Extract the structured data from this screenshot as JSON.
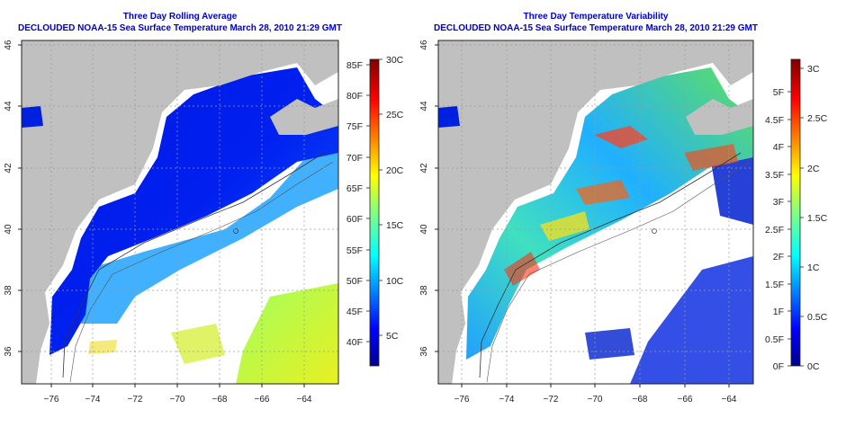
{
  "left_panel": {
    "title": "Three Day Rolling Average",
    "subtitle": "DECLOUDED NOAA-15 Sea Surface Temperature March 28, 2010 21:29 GMT",
    "x_ticks": [
      "−76",
      "−74",
      "−72",
      "−70",
      "−68",
      "−66",
      "−64"
    ],
    "y_ticks": [
      "36",
      "38",
      "40",
      "42",
      "44",
      "46"
    ],
    "colorbar": {
      "left_labels": [
        "40F",
        "45F",
        "50F",
        "55F",
        "60F",
        "65F",
        "70F",
        "75F",
        "80F",
        "85F"
      ],
      "right_labels": [
        "5C",
        "10C",
        "15C",
        "20C",
        "25C",
        "30C"
      ]
    }
  },
  "right_panel": {
    "title": "Three Day Temperature Variability",
    "subtitle": "DECLOUDED NOAA-15 Sea Surface Temperature March 28, 2010 21:29 GMT",
    "x_ticks": [
      "−76",
      "−74",
      "−72",
      "−70",
      "−68",
      "−66",
      "−64"
    ],
    "y_ticks": [
      "36",
      "38",
      "40",
      "42",
      "44",
      "46"
    ],
    "colorbar": {
      "left_labels": [
        "0F",
        "0.5F",
        "1F",
        "1.5F",
        "2F",
        "2.5F",
        "3F",
        "3.5F",
        "4F",
        "4.5F",
        "5F"
      ],
      "right_labels": [
        "0C",
        "0.5C",
        "1C",
        "1.5C",
        "2C",
        "2.5C",
        "3C"
      ]
    }
  },
  "colors": {
    "title": "#0000c8",
    "land": "#c0c0c0",
    "grid": "#9a9a9a"
  }
}
